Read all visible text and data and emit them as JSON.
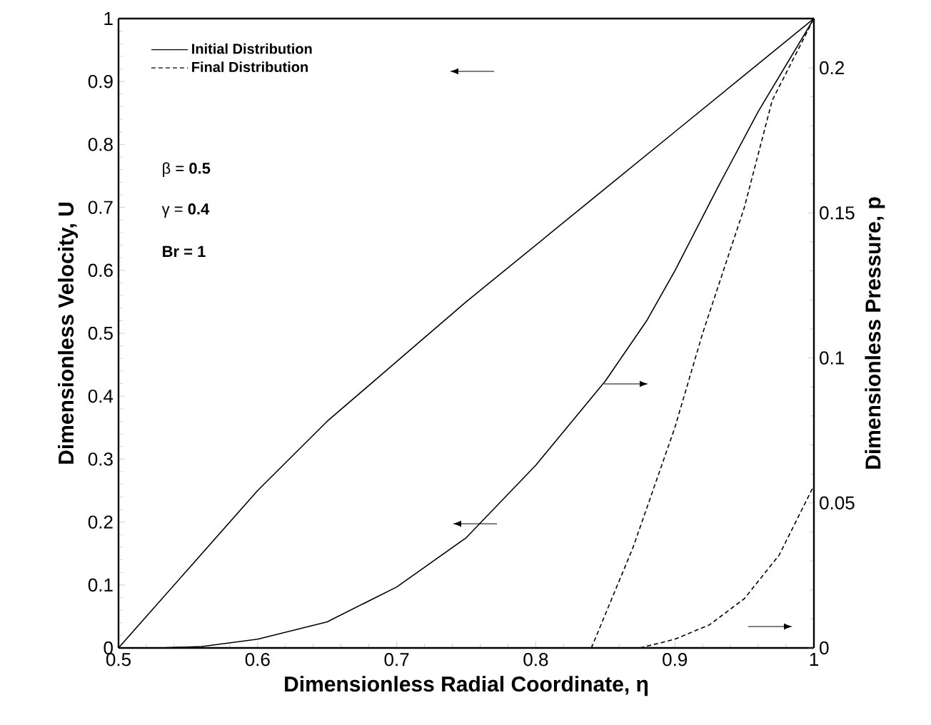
{
  "chart_data": {
    "type": "line",
    "xlabel": "Dimensionless Radial Coordinate, η",
    "ylabel": "Dimensionless Velocity, U",
    "y2label": "Dimensionless Pressure, p",
    "xlim": [
      0.5,
      1
    ],
    "xticks": [
      0.5,
      0.6,
      0.7,
      0.8,
      0.9,
      1
    ],
    "ylim": [
      0,
      1
    ],
    "yticks": [
      0,
      0.1,
      0.2,
      0.3,
      0.4,
      0.5,
      0.6,
      0.7,
      0.8,
      0.9,
      1
    ],
    "y2lim": [
      0,
      0.217
    ],
    "y2ticks": [
      0,
      0.05,
      0.1,
      0.15,
      0.2
    ],
    "legend": "top left",
    "grid": false,
    "marker": "none",
    "annotations": [
      "β = **0.5**",
      "γ = **0.4**",
      "**Br = 1**"
    ],
    "series": [
      {
        "name": "Initial Distribution",
        "color": "#000000",
        "line_style": "solid",
        "x": [
          0.5,
          0.55,
          0.6,
          0.65,
          0.7,
          0.75,
          0.8,
          0.85,
          0.9,
          0.95,
          1
        ],
        "values": [
          0,
          0.125,
          0.25,
          0.36,
          0.455,
          0.55,
          0.64,
          0.73,
          0.82,
          0.91,
          1
        ]
      },
      {
        "name": "Final Distribution",
        "color": "#000000",
        "line_style": "dashed",
        "x": [
          0.84,
          0.87,
          0.9,
          0.92,
          0.95,
          0.97,
          1
        ],
        "values": [
          0,
          0.16,
          0.35,
          0.5,
          0.7,
          0.87,
          1
        ]
      },
      {
        "color": "#000000",
        "line_style": "solid",
        "axis": "y2",
        "x": [
          0.53,
          0.56,
          0.6,
          0.65,
          0.7,
          0.75,
          0.8,
          0.85,
          0.88,
          0.9,
          0.93,
          0.96,
          1
        ],
        "values": [
          0,
          0.0005,
          0.003,
          0.009,
          0.021,
          0.038,
          0.063,
          0.092,
          0.113,
          0.13,
          0.158,
          0.185,
          0.217
        ]
      },
      {
        "color": "#000000",
        "line_style": "dashed",
        "axis": "y2",
        "x": [
          0.875,
          0.9,
          0.925,
          0.95,
          0.975,
          1
        ],
        "values": [
          0,
          0.003,
          0.008,
          0.017,
          0.032,
          0.056
        ]
      }
    ]
  }
}
